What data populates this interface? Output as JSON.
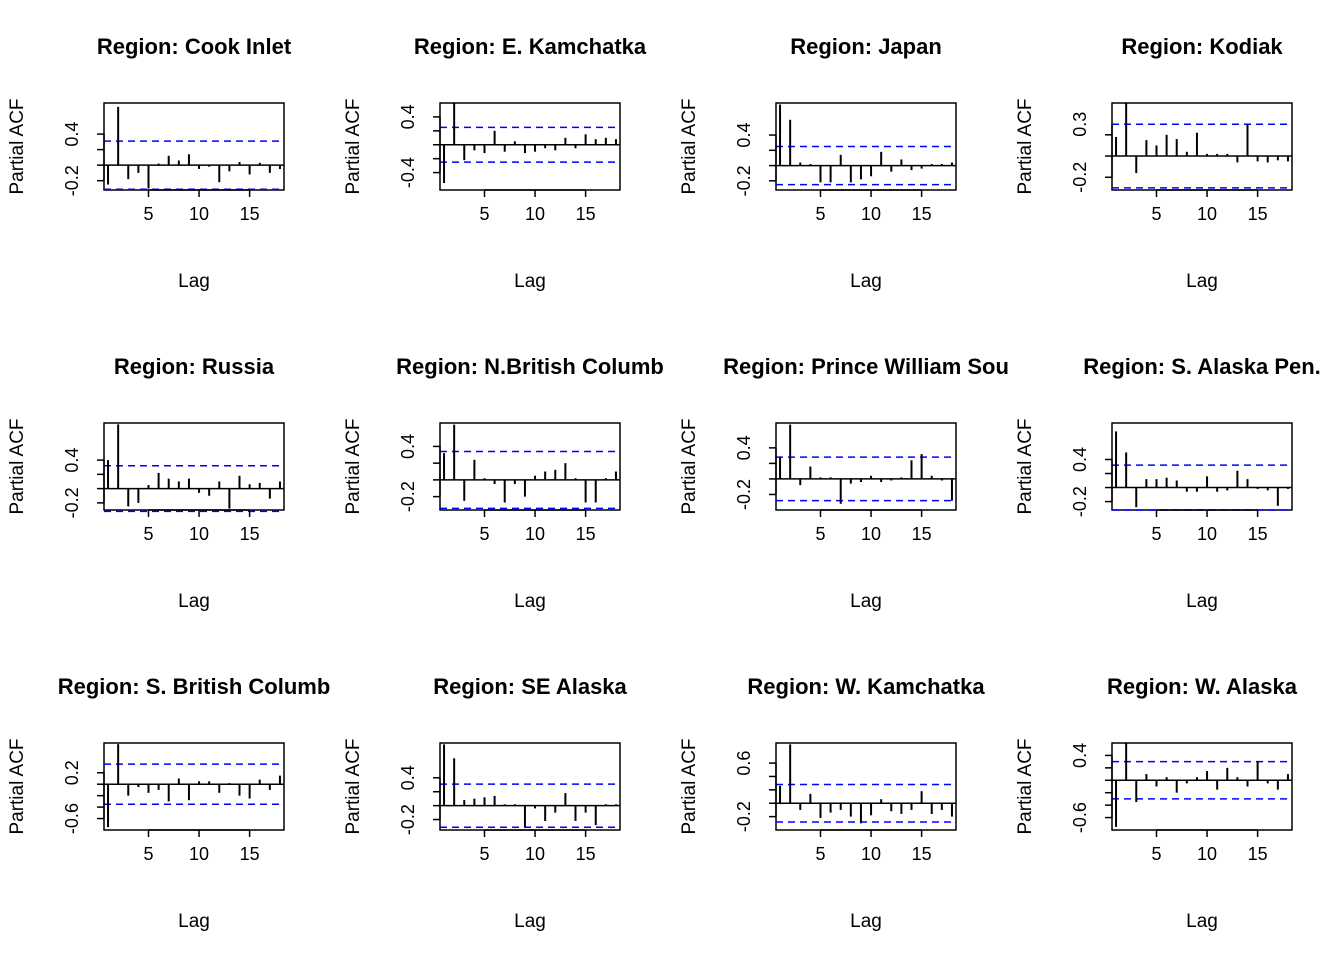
{
  "figure": {
    "ylabel": "Partial ACF",
    "xlabel": "Lag",
    "colors": {
      "ci_line": "#0000ff",
      "axis": "#000000",
      "spike": "#000000"
    }
  },
  "chart_data": [
    {
      "type": "bar",
      "title": "Region: Cook Inlet",
      "xlabel": "Lag",
      "ylabel": "Partial ACF",
      "ylim": [
        -0.32,
        0.8
      ],
      "ci": 0.31,
      "xticks": [
        5,
        10,
        15
      ],
      "yticks": [
        "-0.2",
        "0.4"
      ],
      "ytick_values": [
        -0.2,
        0.4
      ],
      "x": [
        1,
        2,
        3,
        4,
        5,
        6,
        7,
        8,
        9,
        10,
        11,
        12,
        13,
        14,
        15,
        16,
        17,
        18
      ],
      "values": [
        -0.25,
        0.75,
        -0.18,
        -0.1,
        -0.3,
        0.02,
        0.12,
        0.06,
        0.14,
        -0.05,
        -0.02,
        -0.22,
        -0.08,
        0.04,
        -0.12,
        0.03,
        -0.1,
        -0.05
      ]
    },
    {
      "type": "bar",
      "title": "Region: E. Kamchatka",
      "xlabel": "Lag",
      "ylabel": "Partial ACF",
      "ylim": [
        -0.65,
        0.6
      ],
      "ci": 0.25,
      "xticks": [
        5,
        10,
        15
      ],
      "yticks": [
        "-0.4",
        "0.4"
      ],
      "ytick_values": [
        -0.4,
        0.4
      ],
      "x": [
        1,
        2,
        3,
        4,
        5,
        6,
        7,
        8,
        9,
        10,
        11,
        12,
        13,
        14,
        15,
        16,
        17,
        18
      ],
      "values": [
        -0.55,
        0.6,
        -0.22,
        -0.08,
        -0.12,
        0.2,
        -0.1,
        0.05,
        -0.12,
        -0.1,
        -0.05,
        -0.08,
        0.1,
        -0.05,
        0.15,
        0.08,
        0.1,
        0.08
      ]
    },
    {
      "type": "bar",
      "title": "Region: Japan",
      "xlabel": "Lag",
      "ylabel": "Partial ACF",
      "ylim": [
        -0.32,
        0.82
      ],
      "ci": 0.25,
      "xticks": [
        5,
        10,
        15
      ],
      "yticks": [
        "-0.2",
        "0.4"
      ],
      "ytick_values": [
        -0.2,
        0.4
      ],
      "x": [
        1,
        2,
        3,
        4,
        5,
        6,
        7,
        8,
        9,
        10,
        11,
        12,
        13,
        14,
        15,
        16,
        17,
        18
      ],
      "values": [
        0.8,
        0.6,
        0.04,
        0.02,
        -0.22,
        -0.22,
        0.14,
        -0.22,
        -0.18,
        -0.14,
        0.18,
        -0.08,
        0.08,
        -0.06,
        -0.04,
        0.02,
        0.02,
        0.04
      ]
    },
    {
      "type": "bar",
      "title": "Region: Kodiak",
      "xlabel": "Lag",
      "ylabel": "Partial ACF",
      "ylim": [
        -0.32,
        0.5
      ],
      "ci": 0.3,
      "xticks": [
        5,
        10,
        15
      ],
      "yticks": [
        "-0.2",
        "0.3"
      ],
      "ytick_values": [
        -0.2,
        0.3
      ],
      "x": [
        1,
        2,
        3,
        4,
        5,
        6,
        7,
        8,
        9,
        10,
        11,
        12,
        13,
        14,
        15,
        16,
        17,
        18
      ],
      "values": [
        0.18,
        0.5,
        -0.16,
        0.15,
        0.1,
        0.2,
        0.16,
        0.04,
        0.22,
        0.02,
        0.02,
        0.02,
        -0.06,
        0.3,
        -0.05,
        -0.06,
        -0.04,
        -0.05
      ]
    },
    {
      "type": "bar",
      "title": "Region: Russia",
      "xlabel": "Lag",
      "ylabel": "Partial ACF",
      "ylim": [
        -0.3,
        0.92
      ],
      "ci": 0.32,
      "xticks": [
        5,
        10,
        15
      ],
      "yticks": [
        "-0.2",
        "0.4"
      ],
      "ytick_values": [
        -0.2,
        0.4
      ],
      "x": [
        1,
        2,
        3,
        4,
        5,
        6,
        7,
        8,
        9,
        10,
        11,
        12,
        13,
        14,
        15,
        16,
        17,
        18
      ],
      "values": [
        0.4,
        0.9,
        -0.25,
        -0.2,
        0.05,
        0.22,
        0.14,
        0.1,
        0.14,
        -0.06,
        -0.1,
        0.1,
        -0.28,
        0.18,
        0.06,
        0.08,
        -0.14,
        0.1
      ]
    },
    {
      "type": "bar",
      "title": "Region: N.British Columb",
      "xlabel": "Lag",
      "ylabel": "Partial ACF",
      "ylim": [
        -0.36,
        0.68
      ],
      "ci": 0.34,
      "xticks": [
        5,
        10,
        15
      ],
      "yticks": [
        "-0.2",
        "0.4"
      ],
      "ytick_values": [
        -0.2,
        0.4
      ],
      "x": [
        1,
        2,
        3,
        4,
        5,
        6,
        7,
        8,
        9,
        10,
        11,
        12,
        13,
        14,
        15,
        16,
        17,
        18
      ],
      "values": [
        0.32,
        0.66,
        -0.25,
        0.24,
        0.02,
        -0.05,
        -0.27,
        -0.05,
        -0.2,
        0.05,
        0.1,
        0.12,
        0.2,
        0.02,
        -0.27,
        -0.27,
        0.02,
        0.1
      ]
    },
    {
      "type": "bar",
      "title": "Region: Prince William Sou",
      "xlabel": "Lag",
      "ylabel": "Partial ACF",
      "ylim": [
        -0.4,
        0.72
      ],
      "ci": 0.28,
      "xticks": [
        5,
        10,
        15
      ],
      "yticks": [
        "-0.2",
        "0.4"
      ],
      "ytick_values": [
        -0.2,
        0.4
      ],
      "x": [
        1,
        2,
        3,
        4,
        5,
        6,
        7,
        8,
        9,
        10,
        11,
        12,
        13,
        14,
        15,
        16,
        17,
        18
      ],
      "values": [
        0.28,
        0.7,
        -0.08,
        0.16,
        0.02,
        0.02,
        -0.32,
        -0.06,
        -0.04,
        0.04,
        -0.04,
        -0.02,
        0.02,
        0.24,
        0.32,
        0.04,
        -0.02,
        -0.28
      ]
    },
    {
      "type": "bar",
      "title": "Region: S. Alaska Pen.",
      "xlabel": "Lag",
      "ylabel": "Partial ACF",
      "ylim": [
        -0.32,
        0.92
      ],
      "ci": 0.32,
      "xticks": [
        5,
        10,
        15
      ],
      "yticks": [
        "-0.2",
        "0.4"
      ],
      "ytick_values": [
        -0.2,
        0.4
      ],
      "x": [
        1,
        2,
        3,
        4,
        5,
        6,
        7,
        8,
        9,
        10,
        11,
        12,
        13,
        14,
        15,
        16,
        17,
        18
      ],
      "values": [
        0.8,
        0.5,
        -0.28,
        0.12,
        0.12,
        0.14,
        0.1,
        -0.06,
        -0.06,
        0.16,
        -0.06,
        -0.04,
        0.24,
        0.12,
        -0.02,
        -0.04,
        -0.26,
        -0.02
      ]
    },
    {
      "type": "bar",
      "title": "Region: S. British Columb",
      "xlabel": "Lag",
      "ylabel": "Partial ACF",
      "ylim": [
        -0.8,
        0.72
      ],
      "ci": 0.35,
      "xticks": [
        5,
        10,
        15
      ],
      "yticks": [
        "-0.6",
        "0.2"
      ],
      "ytick_values": [
        -0.6,
        0.2
      ],
      "x": [
        1,
        2,
        3,
        4,
        5,
        6,
        7,
        8,
        9,
        10,
        11,
        12,
        13,
        14,
        15,
        16,
        17,
        18
      ],
      "values": [
        -0.75,
        0.7,
        -0.2,
        -0.05,
        -0.15,
        -0.1,
        -0.3,
        0.1,
        -0.28,
        0.05,
        0.05,
        -0.15,
        0.02,
        -0.2,
        -0.25,
        0.08,
        -0.1,
        0.15
      ]
    },
    {
      "type": "bar",
      "title": "Region: SE Alaska",
      "xlabel": "Lag",
      "ylabel": "Partial ACF",
      "ylim": [
        -0.35,
        0.9
      ],
      "ci": 0.31,
      "xticks": [
        5,
        10,
        15
      ],
      "yticks": [
        "-0.2",
        "0.4"
      ],
      "ytick_values": [
        -0.2,
        0.4
      ],
      "x": [
        1,
        2,
        3,
        4,
        5,
        6,
        7,
        8,
        9,
        10,
        11,
        12,
        13,
        14,
        15,
        16,
        17,
        18
      ],
      "values": [
        0.88,
        0.68,
        0.08,
        0.1,
        0.12,
        0.14,
        0.02,
        0.02,
        -0.3,
        -0.04,
        -0.22,
        -0.1,
        0.18,
        -0.22,
        -0.1,
        -0.28,
        0.02,
        0.02
      ]
    },
    {
      "type": "bar",
      "title": "Region: W. Kamchatka",
      "xlabel": "Lag",
      "ylabel": "Partial ACF",
      "ylim": [
        -0.4,
        0.9
      ],
      "ci": 0.28,
      "xticks": [
        5,
        10,
        15
      ],
      "yticks": [
        "-0.2",
        "0.6"
      ],
      "ytick_values": [
        -0.2,
        0.6
      ],
      "x": [
        1,
        2,
        3,
        4,
        5,
        6,
        7,
        8,
        9,
        10,
        11,
        12,
        13,
        14,
        15,
        16,
        17,
        18
      ],
      "values": [
        0.26,
        0.88,
        -0.1,
        0.14,
        -0.22,
        -0.14,
        -0.1,
        -0.2,
        -0.3,
        -0.18,
        0.06,
        -0.12,
        -0.16,
        -0.1,
        0.18,
        -0.16,
        -0.1,
        -0.2
      ]
    },
    {
      "type": "bar",
      "title": "Region: W. Alaska",
      "xlabel": "Lag",
      "ylabel": "Partial ACF",
      "ylim": [
        -0.8,
        0.6
      ],
      "ci": 0.3,
      "xticks": [
        5,
        10,
        15
      ],
      "yticks": [
        "-0.6",
        "0.4"
      ],
      "ytick_values": [
        -0.6,
        0.4
      ],
      "x": [
        1,
        2,
        3,
        4,
        5,
        6,
        7,
        8,
        9,
        10,
        11,
        12,
        13,
        14,
        15,
        16,
        17,
        18
      ],
      "values": [
        -0.75,
        0.6,
        -0.35,
        0.1,
        -0.1,
        0.05,
        -0.2,
        -0.05,
        0.05,
        0.15,
        -0.15,
        0.2,
        0.05,
        -0.1,
        0.3,
        -0.05,
        -0.15,
        0.1
      ]
    }
  ]
}
